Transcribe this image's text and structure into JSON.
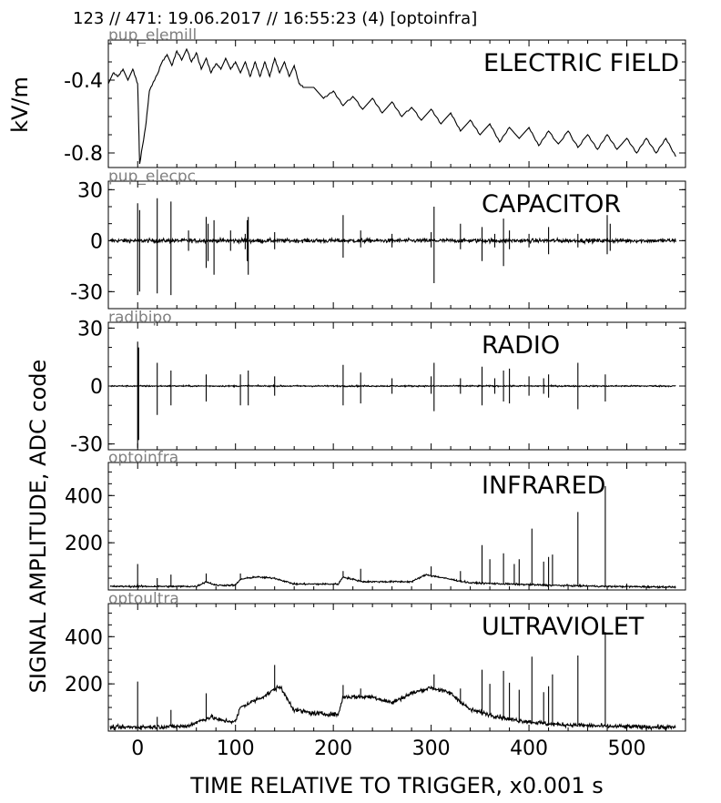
{
  "header": {
    "title": "123 // 471:   19.06.2017 // 16:55:23 (4)  [optoinfra]"
  },
  "labels": {
    "top_ylabel": "kV/m",
    "shared_ylabel": "SIGNAL AMPLITUDE,  ADC code",
    "xlabel": "TIME RELATIVE TO TRIGGER,   x0.001 s"
  },
  "colors": {
    "trace": "#000000",
    "channel_label": "#808080",
    "frame": "#000000"
  },
  "chart_data": [
    {
      "type": "line",
      "channel": "pup_elemill",
      "title": "ELECTRIC FIELD",
      "ylabel": "kV/m",
      "xlim": [
        -30,
        560
      ],
      "ylim": [
        -0.88,
        -0.18
      ],
      "yticks": [
        "-0.4",
        "-0.8"
      ],
      "ytick_values": [
        -0.4,
        -0.8
      ],
      "series": [
        {
          "x": [
            -30,
            -25,
            -20,
            -15,
            -10,
            -5,
            0,
            2,
            8,
            12,
            20,
            25,
            30,
            35,
            40,
            45,
            50,
            55,
            60,
            65,
            70,
            75,
            80,
            85,
            90,
            95,
            100,
            105,
            110,
            115,
            120,
            125,
            130,
            135,
            140,
            145,
            150,
            155,
            160,
            165,
            170,
            180,
            190,
            200,
            210,
            220,
            230,
            240,
            250,
            260,
            270,
            280,
            290,
            300,
            310,
            320,
            330,
            340,
            350,
            360,
            370,
            380,
            390,
            400,
            410,
            420,
            430,
            440,
            450,
            460,
            470,
            480,
            490,
            500,
            510,
            520,
            530,
            540,
            550
          ],
          "y": [
            -0.42,
            -0.36,
            -0.38,
            -0.34,
            -0.4,
            -0.34,
            -0.42,
            -0.86,
            -0.66,
            -0.46,
            -0.37,
            -0.3,
            -0.26,
            -0.32,
            -0.24,
            -0.29,
            -0.23,
            -0.3,
            -0.25,
            -0.34,
            -0.28,
            -0.36,
            -0.31,
            -0.34,
            -0.28,
            -0.34,
            -0.3,
            -0.36,
            -0.3,
            -0.38,
            -0.3,
            -0.38,
            -0.3,
            -0.38,
            -0.28,
            -0.36,
            -0.3,
            -0.38,
            -0.32,
            -0.42,
            -0.44,
            -0.44,
            -0.5,
            -0.46,
            -0.54,
            -0.49,
            -0.56,
            -0.5,
            -0.58,
            -0.52,
            -0.6,
            -0.55,
            -0.62,
            -0.56,
            -0.64,
            -0.58,
            -0.68,
            -0.62,
            -0.7,
            -0.64,
            -0.74,
            -0.66,
            -0.72,
            -0.66,
            -0.76,
            -0.68,
            -0.75,
            -0.68,
            -0.77,
            -0.7,
            -0.78,
            -0.7,
            -0.78,
            -0.72,
            -0.8,
            -0.72,
            -0.8,
            -0.72,
            -0.82
          ]
        }
      ]
    },
    {
      "type": "line",
      "channel": "pup_elecpc",
      "title": "CAPACITOR",
      "xlim": [
        -30,
        560
      ],
      "ylim": [
        -40,
        35
      ],
      "yticks": [
        "30",
        "0",
        "-30"
      ],
      "ytick_values": [
        30,
        0,
        -30
      ],
      "series": [
        {
          "baseline": 0,
          "noise": 2.0,
          "spikes": [
            [
              0,
              22,
              -32
            ],
            [
              2,
              18,
              -30
            ],
            [
              20,
              25,
              -31
            ],
            [
              34,
              23,
              -32
            ],
            [
              52,
              6,
              -6
            ],
            [
              70,
              14,
              -16
            ],
            [
              72,
              10,
              -12
            ],
            [
              78,
              12,
              -20
            ],
            [
              95,
              6,
              -6
            ],
            [
              110,
              4,
              -5
            ],
            [
              112,
              12,
              -12
            ],
            [
              113,
              14,
              -20
            ],
            [
              140,
              5,
              -5
            ],
            [
              210,
              15,
              -10
            ],
            [
              228,
              6,
              -4
            ],
            [
              260,
              4,
              -4
            ],
            [
              300,
              5,
              -4
            ],
            [
              303,
              20,
              -25
            ],
            [
              330,
              10,
              -5
            ],
            [
              352,
              8,
              -12
            ],
            [
              365,
              4,
              -4
            ],
            [
              374,
              13,
              -15
            ],
            [
              380,
              6,
              -5
            ],
            [
              400,
              4,
              -4
            ],
            [
              420,
              8,
              -8
            ],
            [
              450,
              4,
              -4
            ],
            [
              480,
              15,
              -8
            ],
            [
              483,
              10,
              -6
            ]
          ]
        }
      ]
    },
    {
      "type": "line",
      "channel": "radibipo",
      "title": "RADIO",
      "xlim": [
        -30,
        560
      ],
      "ylim": [
        -33,
        33
      ],
      "yticks": [
        "30",
        "0",
        "-30"
      ],
      "ytick_values": [
        30,
        0,
        -30
      ],
      "series": [
        {
          "baseline": 0,
          "noise": 0.6,
          "spikes": [
            [
              0,
              23,
              -32
            ],
            [
              1,
              20,
              -28
            ],
            [
              20,
              12,
              -15
            ],
            [
              34,
              8,
              -10
            ],
            [
              70,
              6,
              -8
            ],
            [
              105,
              6,
              -10
            ],
            [
              113,
              8,
              -10
            ],
            [
              140,
              5,
              -5
            ],
            [
              210,
              11,
              -10
            ],
            [
              228,
              7,
              -9
            ],
            [
              260,
              4,
              -4
            ],
            [
              300,
              5,
              -4
            ],
            [
              303,
              12,
              -13
            ],
            [
              330,
              4,
              -4
            ],
            [
              352,
              10,
              -10
            ],
            [
              365,
              4,
              -4
            ],
            [
              374,
              8,
              -8
            ],
            [
              380,
              9,
              -9
            ],
            [
              400,
              5,
              -5
            ],
            [
              415,
              4,
              -4
            ],
            [
              420,
              6,
              -6
            ],
            [
              450,
              12,
              -12
            ],
            [
              478,
              6,
              -8
            ]
          ]
        }
      ]
    },
    {
      "type": "line",
      "channel": "optoinfra",
      "title": "INFRARED",
      "xlim": [
        -30,
        560
      ],
      "ylim": [
        0,
        540
      ],
      "yticks": [
        "400",
        "200"
      ],
      "ytick_values": [
        400,
        200
      ],
      "series": [
        {
          "baseline": [
            [
              -30,
              15
            ],
            [
              60,
              15
            ],
            [
              70,
              35
            ],
            [
              80,
              20
            ],
            [
              100,
              20
            ],
            [
              105,
              45
            ],
            [
              120,
              55
            ],
            [
              140,
              50
            ],
            [
              160,
              25
            ],
            [
              205,
              25
            ],
            [
              210,
              55
            ],
            [
              230,
              35
            ],
            [
              280,
              35
            ],
            [
              295,
              65
            ],
            [
              320,
              45
            ],
            [
              340,
              30
            ],
            [
              380,
              25
            ],
            [
              420,
              20
            ],
            [
              480,
              15
            ],
            [
              560,
              12
            ]
          ],
          "noise": 6,
          "spikes": [
            [
              0,
              110
            ],
            [
              20,
              50
            ],
            [
              34,
              65
            ],
            [
              70,
              70
            ],
            [
              105,
              70
            ],
            [
              210,
              80
            ],
            [
              228,
              90
            ],
            [
              300,
              100
            ],
            [
              330,
              80
            ],
            [
              352,
              190
            ],
            [
              360,
              130
            ],
            [
              374,
              155
            ],
            [
              385,
              110
            ],
            [
              390,
              130
            ],
            [
              403,
              260
            ],
            [
              415,
              120
            ],
            [
              420,
              140
            ],
            [
              424,
              150
            ],
            [
              450,
              330
            ],
            [
              478,
              440
            ]
          ]
        }
      ]
    },
    {
      "type": "line",
      "channel": "optoultra",
      "title": "ULTRAVIOLET",
      "xlim": [
        -30,
        560
      ],
      "ylim": [
        0,
        540
      ],
      "yticks": [
        "400",
        "200"
      ],
      "ytick_values": [
        400,
        200
      ],
      "series": [
        {
          "baseline": [
            [
              -30,
              15
            ],
            [
              50,
              20
            ],
            [
              65,
              45
            ],
            [
              75,
              60
            ],
            [
              85,
              45
            ],
            [
              100,
              40
            ],
            [
              105,
              100
            ],
            [
              130,
              150
            ],
            [
              145,
              190
            ],
            [
              160,
              90
            ],
            [
              180,
              75
            ],
            [
              205,
              70
            ],
            [
              210,
              145
            ],
            [
              240,
              145
            ],
            [
              260,
              120
            ],
            [
              280,
              160
            ],
            [
              300,
              185
            ],
            [
              320,
              160
            ],
            [
              340,
              90
            ],
            [
              360,
              70
            ],
            [
              380,
              50
            ],
            [
              420,
              30
            ],
            [
              480,
              20
            ],
            [
              560,
              15
            ]
          ],
          "noise": 16,
          "spikes": [
            [
              0,
              210
            ],
            [
              20,
              60
            ],
            [
              34,
              90
            ],
            [
              70,
              160
            ],
            [
              140,
              280
            ],
            [
              210,
              195
            ],
            [
              228,
              180
            ],
            [
              303,
              240
            ],
            [
              330,
              180
            ],
            [
              352,
              260
            ],
            [
              360,
              200
            ],
            [
              374,
              255
            ],
            [
              380,
              205
            ],
            [
              390,
              175
            ],
            [
              403,
              315
            ],
            [
              415,
              165
            ],
            [
              420,
              190
            ],
            [
              424,
              240
            ],
            [
              450,
              320
            ],
            [
              478,
              420
            ]
          ]
        }
      ]
    }
  ],
  "x_axis": {
    "ticks": [
      0,
      100,
      200,
      300,
      400,
      500
    ],
    "tick_labels": [
      "0",
      "100",
      "200",
      "300",
      "400",
      "500"
    ]
  }
}
